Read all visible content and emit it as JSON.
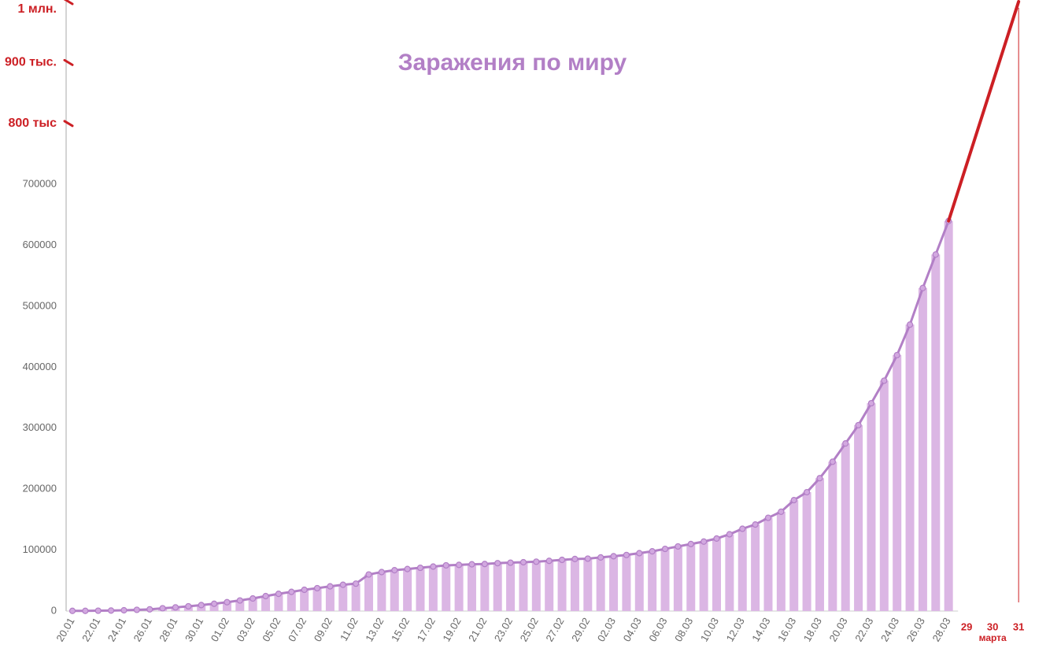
{
  "chart_data": {
    "type": "bar-line",
    "title": "Заражения по миру",
    "categories": [
      "20.01",
      null,
      "22.01",
      null,
      "24.01",
      null,
      "26.01",
      null,
      "28.01",
      null,
      "30.01",
      null,
      "01.02",
      null,
      "03.02",
      null,
      "05.02",
      null,
      "07.02",
      null,
      "09.02",
      null,
      "11.02",
      null,
      "13.02",
      null,
      "15.02",
      null,
      "17.02",
      null,
      "19.02",
      null,
      "21.02",
      null,
      "23.02",
      null,
      "25.02",
      null,
      "27.02",
      null,
      "29.02",
      null,
      "02.03",
      null,
      "04.03",
      null,
      "06.03",
      null,
      "08.03",
      null,
      "10.03",
      null,
      "12.03",
      null,
      "14.03",
      null,
      "16.03",
      null,
      "18.03",
      null,
      "20.03",
      null,
      "22.03",
      null,
      "24.03",
      null,
      "26.03",
      null,
      "28.03"
    ],
    "values": [
      282,
      314,
      581,
      846,
      1320,
      2014,
      2798,
      4593,
      6065,
      7818,
      9826,
      11953,
      14557,
      17391,
      20630,
      24554,
      28276,
      31481,
      34886,
      37558,
      40554,
      43103,
      45000,
      60000,
      64000,
      67000,
      69000,
      71000,
      73000,
      75000,
      75700,
      76700,
      77200,
      78600,
      79400,
      80100,
      81000,
      82400,
      84000,
      85400,
      86000,
      88000,
      90000,
      92000,
      95000,
      98000,
      102000,
      106000,
      110000,
      114000,
      119000,
      126000,
      135000,
      142000,
      153000,
      163000,
      182000,
      195000,
      218000,
      245000,
      275000,
      305000,
      341000,
      378000,
      420000,
      470000,
      530000,
      585000,
      640000
    ],
    "bar_color": "#dbb6e4",
    "line_color": "#b27fc6",
    "ylim": [
      0,
      1000000
    ],
    "yticks": [
      0,
      100000,
      200000,
      300000,
      400000,
      500000,
      600000,
      700000
    ],
    "annotation_yticks": [
      {
        "value": 800000,
        "label": "800 тыс"
      },
      {
        "value": 900000,
        "label": "900 тыс."
      },
      {
        "value": 1000000,
        "label": "1 млн."
      }
    ],
    "projection": {
      "labels": [
        "29",
        "30",
        "31"
      ],
      "month": "марта",
      "target": 1000000,
      "color": "#cc1f24"
    },
    "grid": true
  }
}
